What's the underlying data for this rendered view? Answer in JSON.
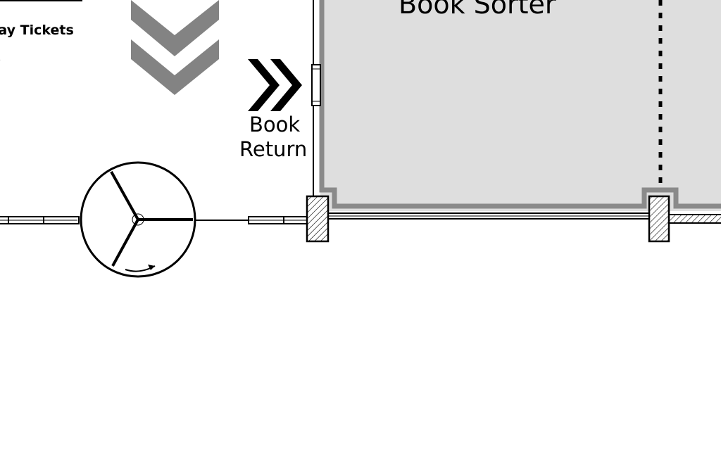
{
  "labels": {
    "ticket_counter": "Pay Tickets",
    "book_sorter": "Book Sorter",
    "book_return_line1": "Book",
    "book_return_line2": "Return"
  },
  "colors": {
    "sorter_fill": "#dedede",
    "sorter_border": "#8a8a8a",
    "chevron_gray": "#838383",
    "ink": "#000000"
  },
  "icons": {
    "flow_arrow_down": "double-chevron-down",
    "book_return_arrow": "double-chevron-right",
    "turnstile": "three-arm-turnstile"
  }
}
